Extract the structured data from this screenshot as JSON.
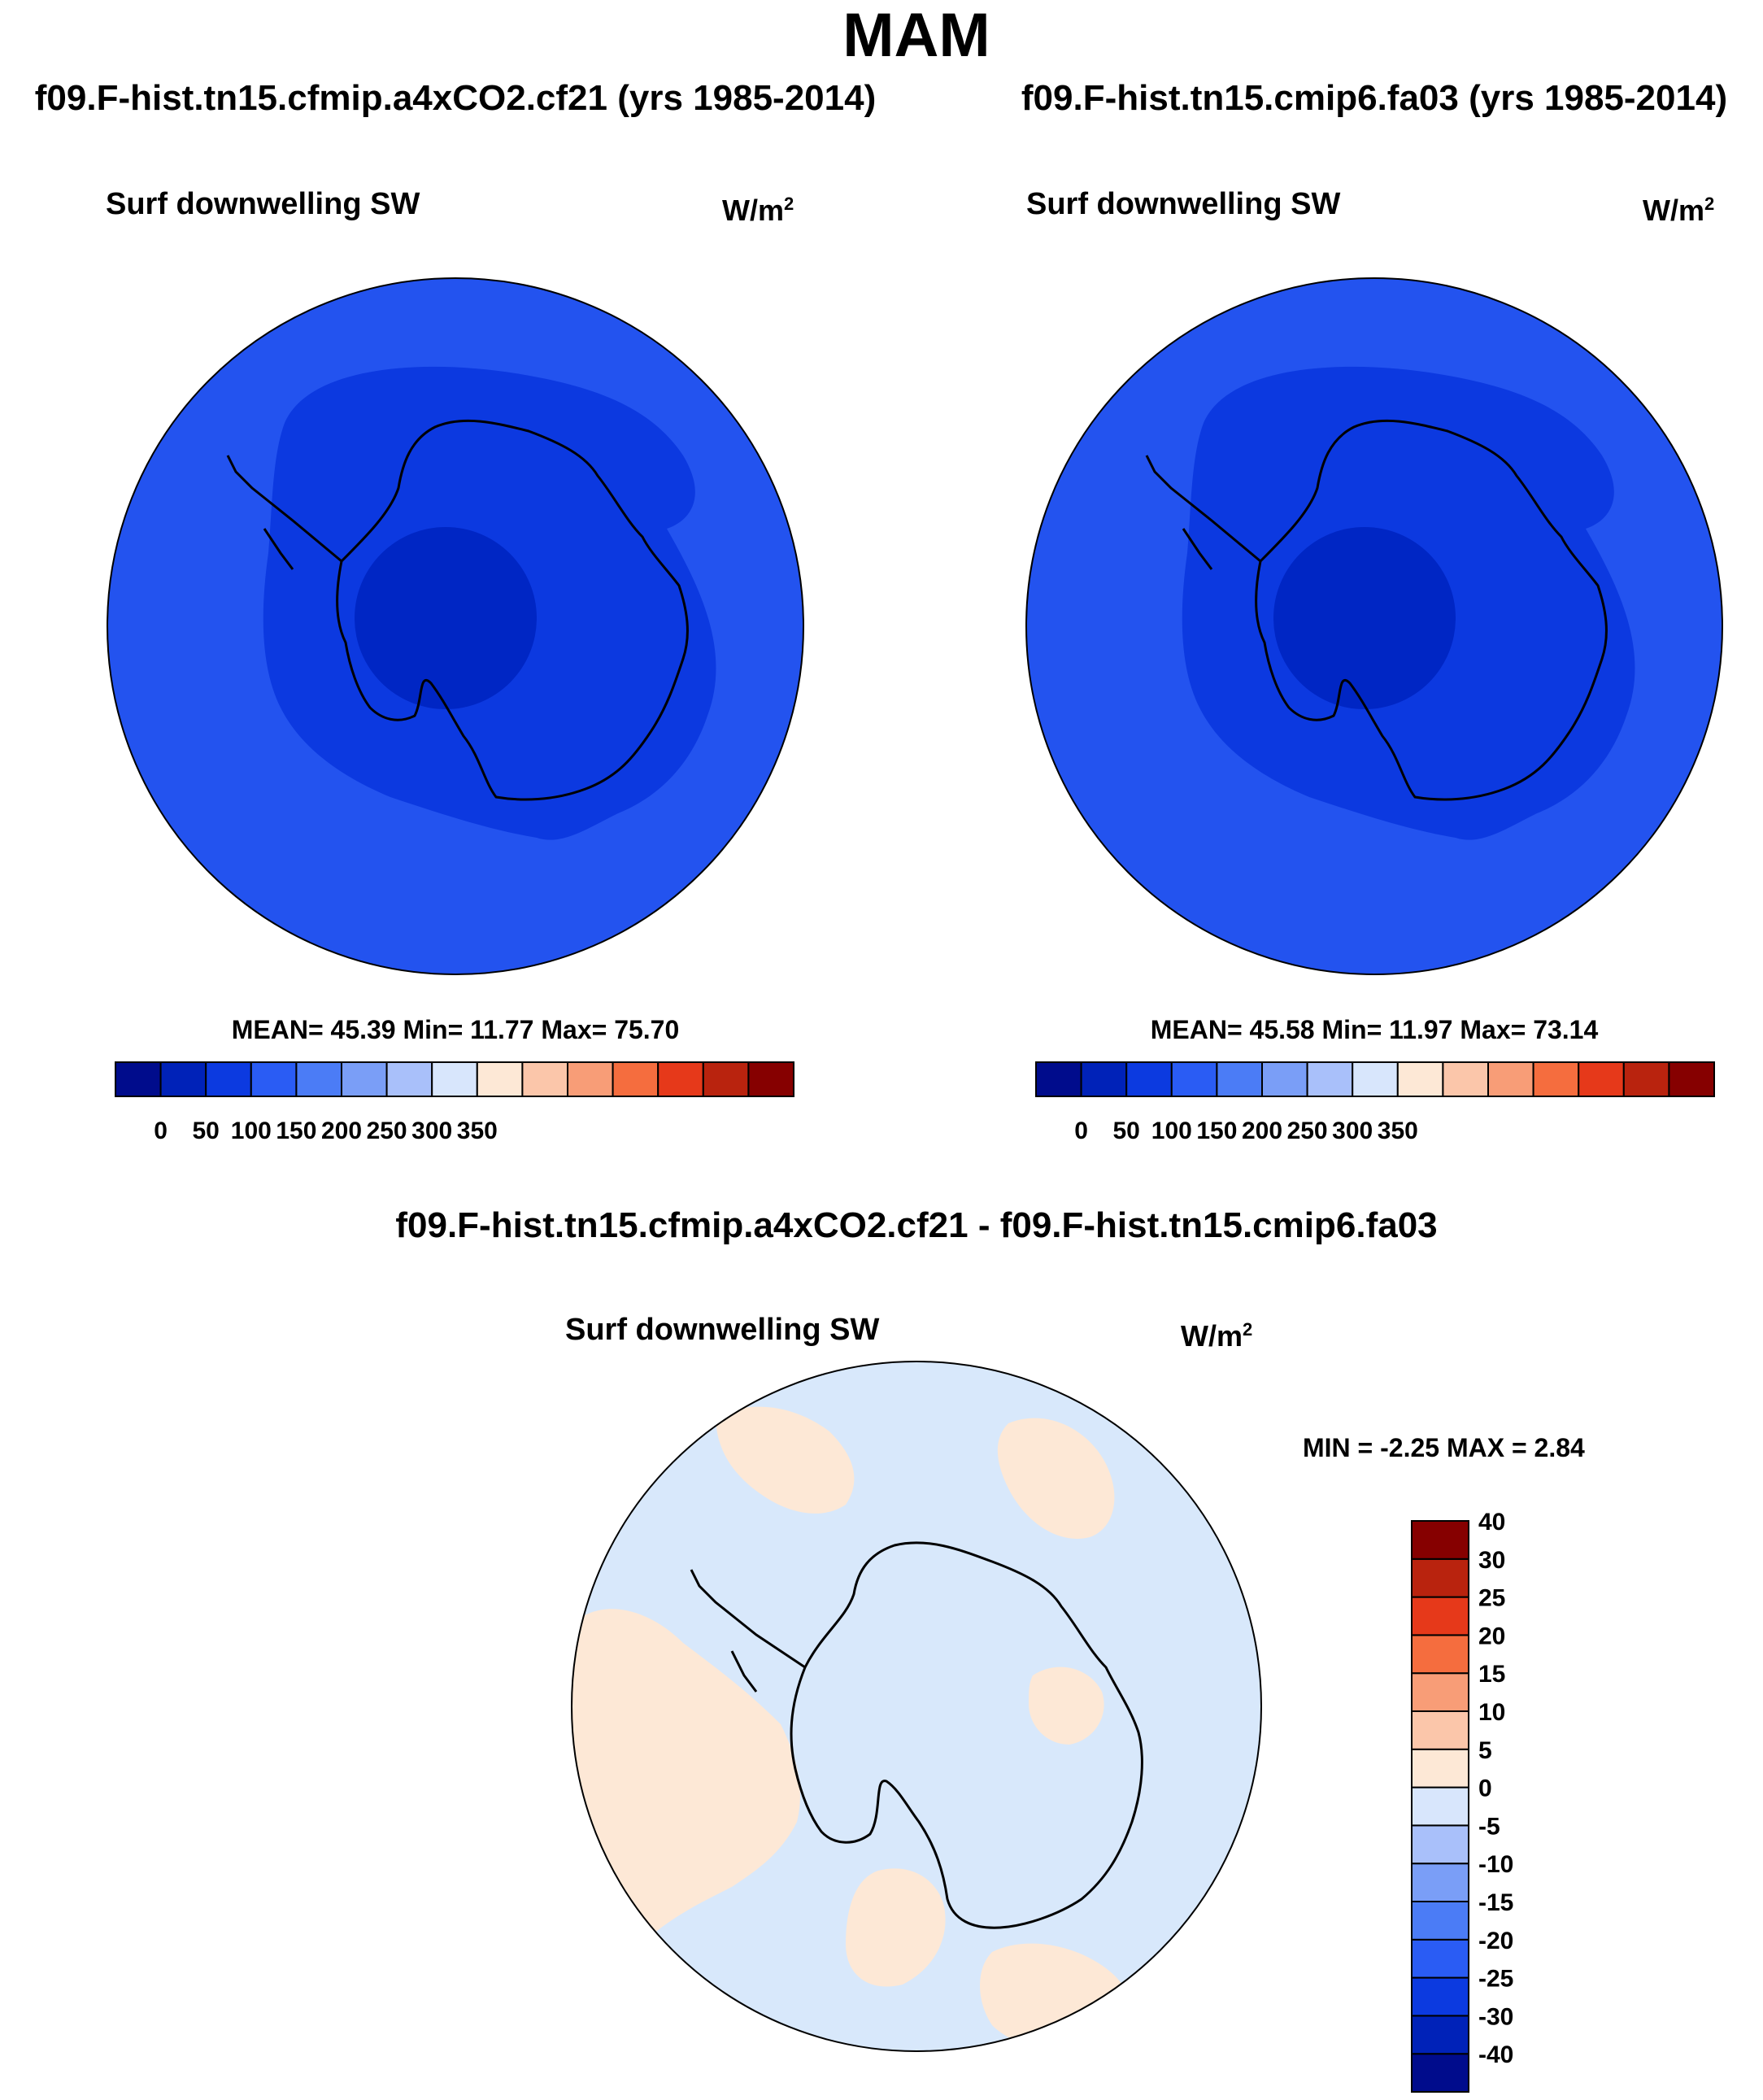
{
  "title": "MAM",
  "panels": [
    {
      "case_title": "f09.F-hist.tn15.cfmip.a4xCO2.cf21 (yrs 1985-2014)",
      "variable": "Surf downwelling SW",
      "units_base": "W/m",
      "units_exp": "2",
      "stats": "MEAN=  45.39  Min=  11.77  Max=  75.70",
      "colors": {
        "ocean": "#2353ef",
        "mid": "#0c39e0",
        "inner": "#0026c4"
      }
    },
    {
      "case_title": "f09.F-hist.tn15.cmip6.fa03 (yrs 1985-2014)",
      "variable": "Surf downwelling SW",
      "units_base": "W/m",
      "units_exp": "2",
      "stats": "MEAN=  45.58  Min=  11.97  Max=  73.14",
      "colors": {
        "ocean": "#2353ef",
        "mid": "#0c39e0",
        "inner": "#0026c4"
      }
    }
  ],
  "horizontal_colorbar": {
    "colors": [
      "#000c8c",
      "#0022b8",
      "#0c3ae0",
      "#2a5cf4",
      "#4b7cf6",
      "#7a9ef7",
      "#a9c0fa",
      "#d8e6fc",
      "#fde8d6",
      "#fbc6aa",
      "#f89d77",
      "#f56d3e",
      "#e6391a",
      "#b9230e",
      "#860000"
    ],
    "labels": [
      "0",
      "50",
      "100",
      "150",
      "200",
      "250",
      "300",
      "350"
    ]
  },
  "difference_panel": {
    "title": "f09.F-hist.tn15.cfmip.a4xCO2.cf21 - f09.F-hist.tn15.cmip6.fa03",
    "variable": "Surf downwelling SW",
    "units_base": "W/m",
    "units_exp": "2",
    "stats": "MIN =  -2.25 MAX =   2.84",
    "colors": {
      "negative": "#d8e8fb",
      "positive": "#fde8d6"
    }
  },
  "vertical_colorbar": {
    "colors": [
      "#000c8c",
      "#0022b8",
      "#0c3ae0",
      "#2a5cf4",
      "#4b7cf6",
      "#7a9ef7",
      "#a9c0fa",
      "#d8e6fc",
      "#fde8d6",
      "#fbc6aa",
      "#f89d77",
      "#f56d3e",
      "#e6391a",
      "#b9230e",
      "#860000"
    ],
    "labels": [
      "-40",
      "-30",
      "-25",
      "-20",
      "-15",
      "-10",
      "-5",
      "0",
      "5",
      "10",
      "15",
      "20",
      "25",
      "30",
      "40"
    ]
  }
}
